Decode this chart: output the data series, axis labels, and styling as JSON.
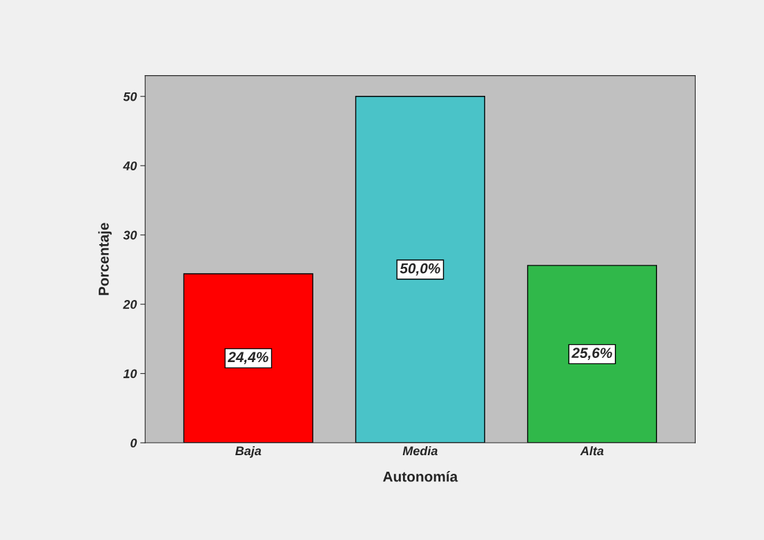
{
  "chart_data": {
    "type": "bar",
    "xlabel": "Autonomía",
    "ylabel": "Porcentaje",
    "categories": [
      "Baja",
      "Media",
      "Alta"
    ],
    "values": [
      24.4,
      50.0,
      25.6
    ],
    "colors": [
      "#ff0000",
      "#4ac3c8",
      "#30b84a"
    ],
    "value_labels": [
      "24,4%",
      "50,0%",
      "25,6%"
    ],
    "ylim": [
      0,
      53
    ],
    "yticks": [
      0,
      10,
      20,
      30,
      40,
      50
    ],
    "grid": false
  }
}
